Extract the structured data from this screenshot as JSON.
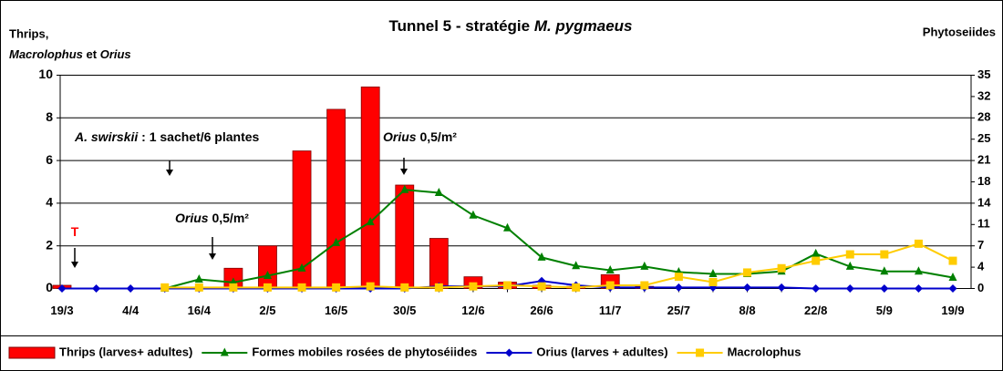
{
  "chart_data": {
    "type": "bar_line",
    "title": "Tunnel 5 -  stratégie ",
    "title_italic": "M. pygmaeus",
    "y_label": [
      "Thrips,",
      "Macrolophus",
      " et ",
      "Orius"
    ],
    "y2_label": "Phytoseiides",
    "categories": [
      "19/3",
      null,
      "4/4",
      null,
      "16/4",
      null,
      "2/5",
      null,
      "16/5",
      null,
      "30/5",
      null,
      "12/6",
      null,
      "26/6",
      null,
      "11/7",
      null,
      "25/7",
      null,
      "8/8",
      null,
      "22/8",
      null,
      "5/9",
      null,
      "19/9"
    ],
    "ylim": [
      0,
      10
    ],
    "yticks": [
      0,
      2,
      4,
      6,
      8,
      10
    ],
    "y2lim": [
      0,
      35
    ],
    "y2ticks": [
      0,
      {
        "value": 3.5,
        "label": "4"
      },
      7,
      {
        "value": 10.5,
        "label": "11"
      },
      14,
      {
        "value": 17.5,
        "label": "18"
      },
      21,
      {
        "value": 24.5,
        "label": "25"
      },
      28,
      {
        "value": 31.5,
        "label": "32"
      },
      35
    ],
    "grid": true,
    "series": [
      {
        "name": "Thrips (larves+ adultes)",
        "kind": "bar",
        "color": "#ff0000",
        "values": [
          0.15,
          0,
          0,
          0,
          0,
          0.95,
          2.0,
          6.45,
          8.4,
          9.45,
          4.85,
          2.35,
          0.55,
          0.3,
          0.15,
          0.1,
          0.65,
          0.1,
          0,
          0,
          0,
          0,
          0,
          0,
          0,
          0,
          0
        ]
      },
      {
        "name": "Formes mobiles rosées de phytoséiides",
        "kind": "line",
        "marker": "triangle",
        "axis": "y2",
        "color": "#008000",
        "values": [
          null,
          null,
          null,
          0,
          1.5,
          1.0,
          2.1,
          3.3,
          7.5,
          10.9,
          16.2,
          15.7,
          12.0,
          9.9,
          5.1,
          3.7,
          3.0,
          3.6,
          2.7,
          2.4,
          2.4,
          2.8,
          5.7,
          3.6,
          2.8,
          2.8,
          1.8
        ]
      },
      {
        "name": "Orius (larves + adultes)",
        "kind": "line",
        "marker": "diamond",
        "color": "#0000cc",
        "values": [
          0,
          0,
          0,
          0,
          0,
          0,
          0,
          0,
          0,
          0,
          0,
          0.1,
          0.1,
          0.1,
          0.35,
          0.15,
          0.05,
          0.05,
          0.05,
          0.05,
          0.05,
          0.05,
          0,
          0,
          0,
          0,
          0
        ]
      },
      {
        "name": "Macrolophus",
        "kind": "line",
        "marker": "square",
        "color": "#ffcc00",
        "values": [
          null,
          null,
          null,
          0.05,
          0.05,
          0.05,
          0.05,
          0.05,
          0.05,
          0.1,
          0.05,
          0.05,
          0.1,
          0.15,
          0.1,
          0.05,
          0.15,
          0.15,
          0.55,
          0.3,
          0.75,
          0.95,
          1.3,
          1.6,
          1.6,
          2.1,
          1.3
        ]
      }
    ],
    "annotations": [
      {
        "text": "T",
        "color": "#ff0000"
      },
      {
        "italic": "A. swirskii",
        "text": " : 1 sachet/6 plantes"
      },
      {
        "italic": "Orius",
        "text": " 0,5/m²"
      },
      {
        "italic": "Orius",
        "text": " 0,5/m²"
      }
    ]
  }
}
